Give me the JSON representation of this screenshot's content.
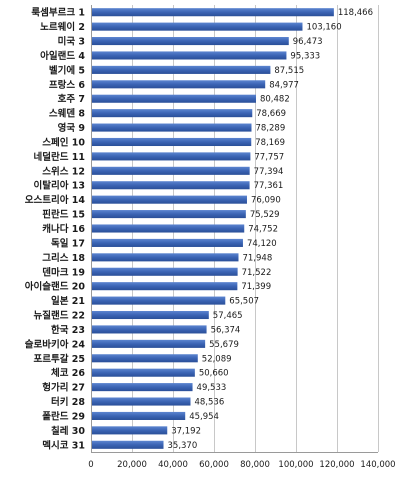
{
  "chart_data": {
    "type": "bar",
    "orientation": "horizontal",
    "categories": [
      "룩셈부르크 1",
      "노르웨이 2",
      "미국 3",
      "아일랜드 4",
      "벨기에 5",
      "프랑스 6",
      "호주 7",
      "스웨덴 8",
      "영국 9",
      "스페인 10",
      "네덜란드 11",
      "스위스 12",
      "이탈리아 13",
      "오스트리아 14",
      "핀란드 15",
      "캐나다 16",
      "독일 17",
      "그리스 18",
      "덴마크 19",
      "아이슬랜드 20",
      "일본 21",
      "뉴질랜드 22",
      "한국 23",
      "슬로바키아 24",
      "포르투갈 25",
      "체코 26",
      "헝가리 27",
      "터키 28",
      "폴란드 29",
      "칠레 30",
      "멕시코 31"
    ],
    "values": [
      118466,
      103160,
      96473,
      95333,
      87515,
      84977,
      80482,
      78669,
      78289,
      78169,
      77757,
      77394,
      77361,
      76090,
      75529,
      74752,
      74120,
      71948,
      71522,
      71399,
      65507,
      57465,
      56374,
      55679,
      52089,
      50660,
      49533,
      48536,
      45954,
      37192,
      35370
    ],
    "value_labels": [
      "118,466",
      "103,160",
      "96,473",
      "95,333",
      "87,515",
      "84,977",
      "80,482",
      "78,669",
      "78,289",
      "78,169",
      "77,757",
      "77,394",
      "77,361",
      "76,090",
      "75,529",
      "74,752",
      "74,120",
      "71,948",
      "71,522",
      "71,399",
      "65,507",
      "57,465",
      "56,374",
      "55,679",
      "52,089",
      "50,660",
      "49,533",
      "48,536",
      "45,954",
      "37,192",
      "35,370"
    ],
    "xlim": [
      0,
      140000
    ],
    "xticks": [
      0,
      20000,
      40000,
      60000,
      80000,
      100000,
      120000,
      140000
    ],
    "xtick_labels": [
      "0",
      "20,000",
      "40,000",
      "60,000",
      "80,000",
      "100,000",
      "120,000",
      "140,000"
    ],
    "grid": true,
    "bar_color": "#3b64b4",
    "title": "",
    "xlabel": "",
    "ylabel": ""
  }
}
